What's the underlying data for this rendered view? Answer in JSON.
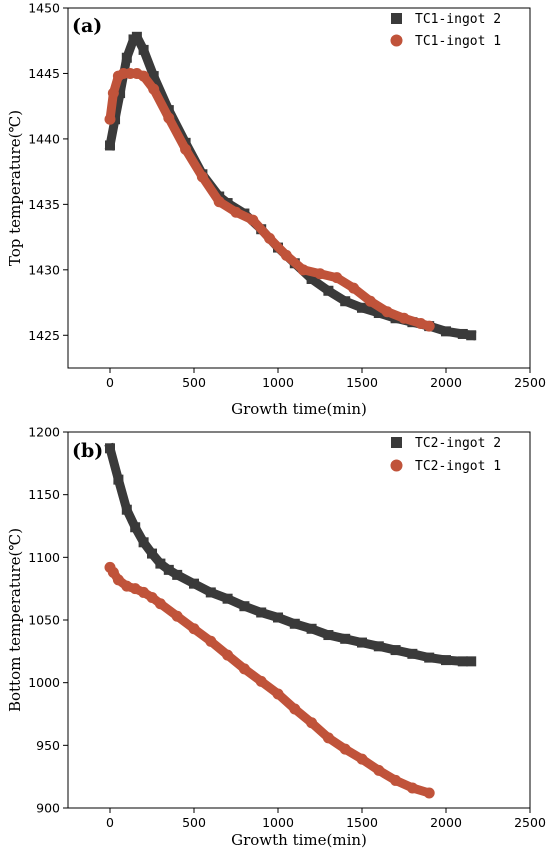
{
  "chart_data": [
    {
      "type": "scatter",
      "panel_label": "(a)",
      "xlabel": "Growth time(min)",
      "ylabel": "Top temperature(℃)",
      "xlim": [
        -250,
        2500
      ],
      "ylim": [
        1422.5,
        1450
      ],
      "xticks": [
        0,
        500,
        1000,
        1500,
        2000,
        2500
      ],
      "yticks": [
        1425,
        1430,
        1435,
        1440,
        1445,
        1450
      ],
      "legend_position": "top-right",
      "series": [
        {
          "name": "TC1-ingot 2",
          "marker": "square",
          "color": "#3a3a3a",
          "x": [
            0,
            30,
            60,
            100,
            140,
            160,
            200,
            260,
            350,
            450,
            550,
            650,
            700,
            800,
            900,
            1000,
            1100,
            1200,
            1300,
            1400,
            1500,
            1600,
            1700,
            1800,
            1900,
            2000,
            2100,
            2150
          ],
          "y": [
            1439.5,
            1441.5,
            1443.5,
            1446.2,
            1447.6,
            1447.8,
            1446.8,
            1444.8,
            1442.2,
            1439.7,
            1437.3,
            1435.6,
            1435.1,
            1434.3,
            1433.1,
            1431.7,
            1430.5,
            1429.3,
            1428.4,
            1427.6,
            1427.1,
            1426.7,
            1426.3,
            1426.0,
            1425.7,
            1425.3,
            1425.1,
            1425.0
          ]
        },
        {
          "name": "TC1-ingot 1",
          "marker": "circle",
          "color": "#c0533a",
          "x": [
            0,
            20,
            50,
            80,
            120,
            160,
            200,
            260,
            350,
            450,
            550,
            650,
            750,
            850,
            950,
            1050,
            1150,
            1250,
            1350,
            1450,
            1550,
            1650,
            1750,
            1850,
            1900
          ],
          "y": [
            1441.5,
            1443.5,
            1444.8,
            1445.0,
            1445.0,
            1445.0,
            1444.8,
            1443.8,
            1441.6,
            1439.2,
            1437.1,
            1435.2,
            1434.4,
            1433.8,
            1432.4,
            1431.1,
            1430.0,
            1429.7,
            1429.4,
            1428.6,
            1427.6,
            1426.8,
            1426.3,
            1425.9,
            1425.7
          ]
        }
      ]
    },
    {
      "type": "scatter",
      "panel_label": "(b)",
      "xlabel": "Growth time(min)",
      "ylabel": "Bottom temperature(℃)",
      "xlim": [
        -250,
        2500
      ],
      "ylim": [
        900,
        1200
      ],
      "xticks": [
        0,
        500,
        1000,
        1500,
        2000,
        2500
      ],
      "yticks": [
        900,
        950,
        1000,
        1050,
        1100,
        1150,
        1200
      ],
      "legend_position": "top-right",
      "series": [
        {
          "name": "TC2-ingot 2",
          "marker": "square",
          "color": "#3a3a3a",
          "x": [
            0,
            50,
            100,
            150,
            200,
            250,
            300,
            350,
            400,
            500,
            600,
            700,
            800,
            900,
            1000,
            1100,
            1200,
            1300,
            1400,
            1500,
            1600,
            1700,
            1800,
            1900,
            2000,
            2100,
            2150
          ],
          "y": [
            1187,
            1162,
            1138,
            1124,
            1112,
            1103,
            1095,
            1090,
            1086,
            1079,
            1072,
            1067,
            1061,
            1056,
            1052,
            1047,
            1043,
            1038,
            1035,
            1032,
            1029,
            1026,
            1023,
            1020,
            1018,
            1017,
            1017
          ]
        },
        {
          "name": "TC2-ingot 1",
          "marker": "circle",
          "color": "#c0533a",
          "x": [
            0,
            20,
            50,
            100,
            150,
            200,
            250,
            300,
            400,
            500,
            600,
            700,
            800,
            900,
            1000,
            1100,
            1200,
            1300,
            1400,
            1500,
            1600,
            1700,
            1800,
            1900
          ],
          "y": [
            1092,
            1088,
            1082,
            1077,
            1075,
            1072,
            1068,
            1063,
            1053,
            1043,
            1033,
            1022,
            1011,
            1001,
            991,
            979,
            968,
            956,
            947,
            939,
            930,
            922,
            916,
            912
          ]
        }
      ]
    }
  ]
}
